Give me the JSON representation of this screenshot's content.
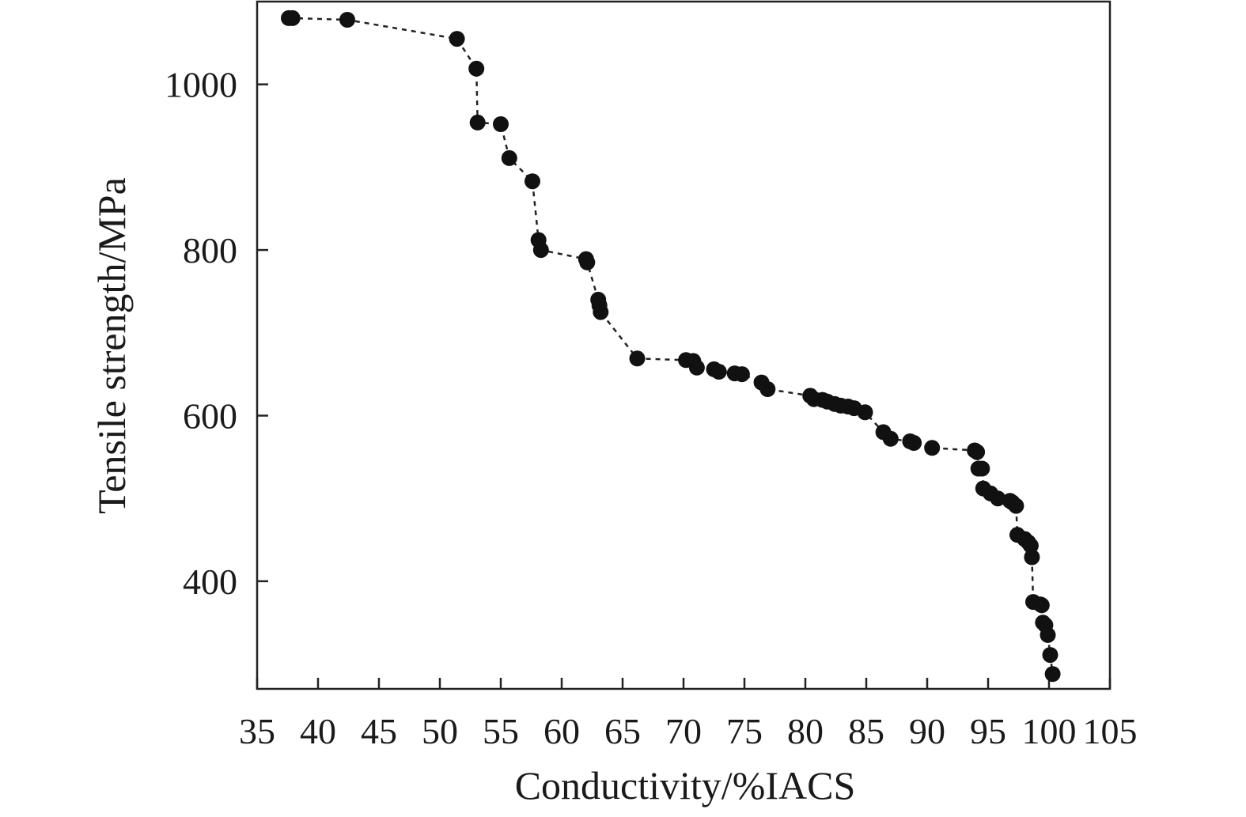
{
  "chart_data": {
    "type": "scatter",
    "title": "",
    "xlabel": "Conductivity/%IACS",
    "ylabel": "Tensile strength/MPa",
    "xlim": [
      35,
      105
    ],
    "ylim": [
      270,
      1100
    ],
    "x_ticks": [
      35,
      40,
      45,
      50,
      55,
      60,
      65,
      70,
      75,
      80,
      85,
      90,
      95,
      100,
      105
    ],
    "y_ticks": [
      400,
      600,
      800,
      1000
    ],
    "grid": false,
    "legend": "none",
    "marker_color": "#111111",
    "line_style": "dashed",
    "series": [
      {
        "x": [
          37.6,
          37.9,
          42.4,
          51.4,
          53.0,
          53.1,
          55.0,
          55.7,
          57.6,
          58.1,
          58.3,
          62.0,
          62.1,
          63.0,
          63.1,
          63.2,
          66.2,
          70.2,
          70.8,
          71.1,
          72.5,
          72.9,
          74.2,
          74.8,
          76.4,
          76.9,
          80.4,
          80.7,
          81.4,
          81.8,
          82.4,
          82.9,
          83.5,
          84.0,
          84.9,
          86.4,
          87.0,
          88.6,
          88.9,
          90.4,
          93.9,
          94.1,
          94.2,
          94.5,
          94.6,
          95.2,
          95.8,
          96.8,
          97.0,
          97.3,
          97.4,
          98.0,
          98.3,
          98.5,
          98.6,
          98.7,
          99.3,
          99.4,
          99.5,
          99.7,
          99.9,
          100.1,
          100.3
        ],
        "y": [
          1080,
          1080,
          1078,
          1055,
          1019,
          954,
          952,
          911,
          883,
          812,
          800,
          789,
          785,
          740,
          733,
          725,
          669,
          667,
          666,
          658,
          656,
          653,
          651,
          650,
          640,
          632,
          624,
          620,
          619,
          617,
          614,
          612,
          611,
          609,
          604,
          580,
          572,
          569,
          567,
          561,
          558,
          556,
          536,
          536,
          512,
          506,
          500,
          497,
          495,
          491,
          456,
          451,
          447,
          443,
          429,
          375,
          372,
          371,
          350,
          347,
          335,
          311,
          288
        ]
      }
    ]
  }
}
